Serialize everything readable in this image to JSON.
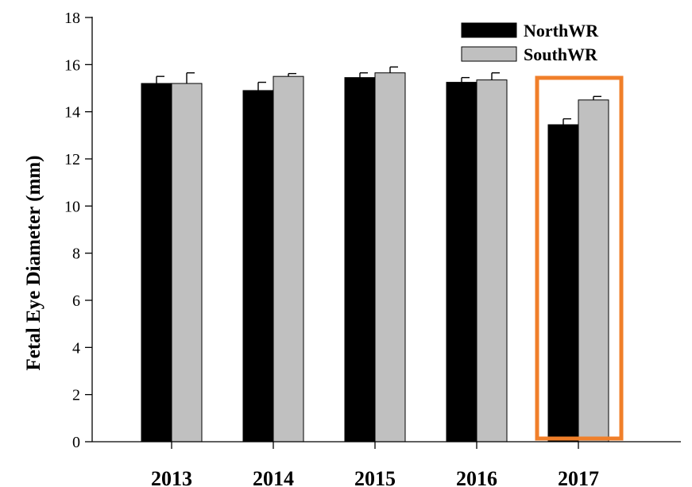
{
  "chart_data": {
    "type": "bar",
    "title": "",
    "xlabel": "",
    "ylabel": "Fetal Eye Diameter (mm)",
    "ylim": [
      0,
      18
    ],
    "yticks": [
      0,
      2,
      4,
      6,
      8,
      10,
      12,
      14,
      16,
      18
    ],
    "categories": [
      "2013",
      "2014",
      "2015",
      "2016",
      "2017"
    ],
    "series": [
      {
        "name": "NorthWR",
        "color": "#000000",
        "values": [
          15.2,
          14.9,
          15.45,
          15.25,
          13.45
        ],
        "errors": [
          0.3,
          0.35,
          0.2,
          0.2,
          0.25
        ]
      },
      {
        "name": "SouthWR",
        "color": "#c0c0c0",
        "values": [
          15.2,
          15.5,
          15.65,
          15.35,
          14.5
        ],
        "errors": [
          0.45,
          0.12,
          0.25,
          0.3,
          0.15
        ]
      }
    ],
    "legend_position": "top-right",
    "grid": false,
    "highlight": {
      "category": "2017",
      "color": "#f07f2a"
    }
  }
}
